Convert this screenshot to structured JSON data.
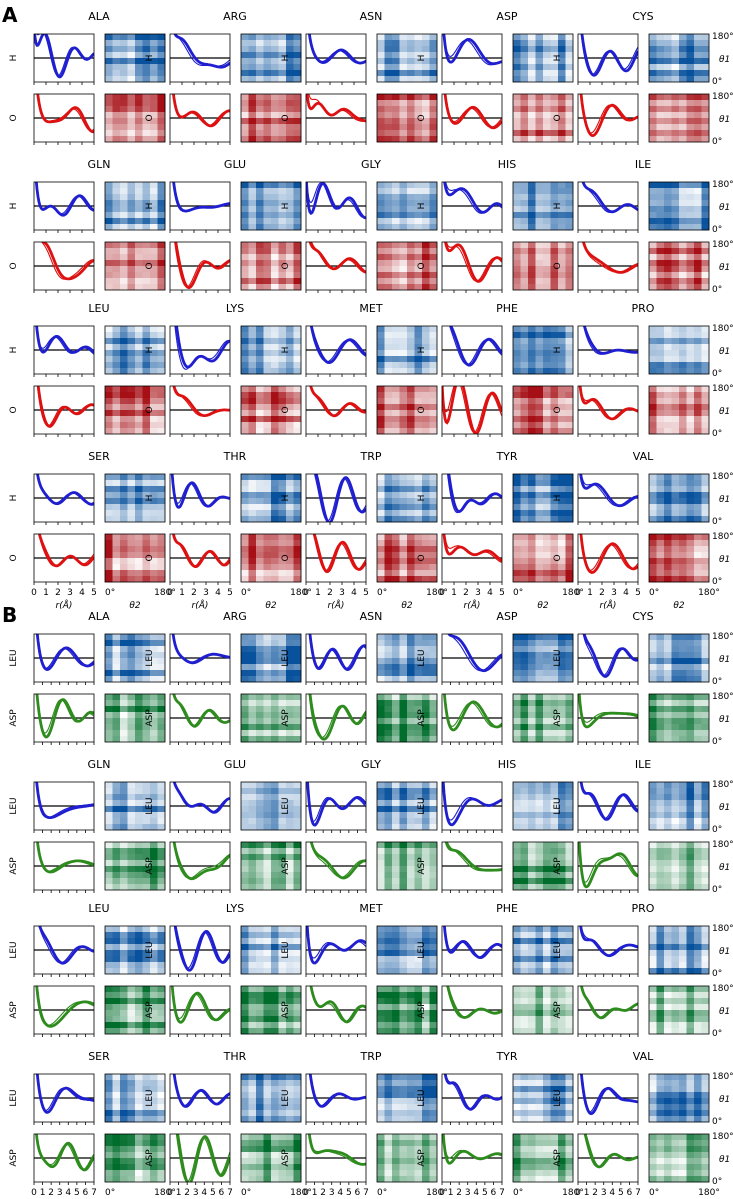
{
  "figure": {
    "panels": [
      {
        "id": "A",
        "label": "A",
        "residues": [
          "ALA",
          "ARG",
          "ASN",
          "ASP",
          "CYS",
          "GLN",
          "GLU",
          "GLY",
          "HIS",
          "ILE",
          "LEU",
          "LYS",
          "MET",
          "PHE",
          "PRO",
          "SER",
          "THR",
          "TRP",
          "TYR",
          "VAL"
        ],
        "rows": [
          {
            "label": "H",
            "palette": "blue"
          },
          {
            "label": "O",
            "palette": "red"
          }
        ],
        "r_ticks": [
          "0",
          "1",
          "2",
          "3",
          "4",
          "5"
        ],
        "r_max": 5
      },
      {
        "id": "B",
        "label": "B",
        "residues": [
          "ALA",
          "ARG",
          "ASN",
          "ASP",
          "CYS",
          "GLN",
          "GLU",
          "GLY",
          "HIS",
          "ILE",
          "LEU",
          "LYS",
          "MET",
          "PHE",
          "PRO",
          "SER",
          "THR",
          "TRP",
          "TYR",
          "VAL"
        ],
        "rows": [
          {
            "label": "LEU",
            "palette": "blue"
          },
          {
            "label": "ASP",
            "palette": "green"
          }
        ],
        "r_ticks": [
          "0",
          "1",
          "2",
          "3",
          "4",
          "5",
          "6",
          "7"
        ],
        "r_max": 7
      }
    ],
    "axis_text": {
      "r_label": "r(Å)",
      "theta2_label": "θ2",
      "theta1_label": "θ1",
      "theta_min": "0°",
      "theta_max": "180°"
    },
    "colors": {
      "blue": "#1f1fd0",
      "red": "#dd1111",
      "green": "#2e8b1e",
      "heat_blue": "#08519c",
      "heat_red": "#a50f15",
      "heat_green": "#006d2c",
      "zero_line": "#000000"
    }
  },
  "chart_data": {
    "type": "line",
    "description_kind": "small-multiples: radial distribution curves g(r) with thick/thin lines plus theta1-theta2 angular heatmaps per amino-acid residue",
    "panels": [
      "A",
      "B"
    ],
    "x_axis": {
      "label": "r(Å)",
      "ranges": {
        "A": [
          0,
          5
        ],
        "B": [
          0,
          7
        ]
      }
    },
    "heatmap_axes": {
      "x": "θ2",
      "y": "θ1",
      "range_deg": [
        0,
        180
      ]
    },
    "series_rows": {
      "A": [
        "H",
        "O"
      ],
      "B": [
        "LEU",
        "ASP"
      ]
    },
    "residues": [
      "ALA",
      "ARG",
      "ASN",
      "ASP",
      "CYS",
      "GLN",
      "GLU",
      "GLY",
      "HIS",
      "ILE",
      "LEU",
      "LYS",
      "MET",
      "PHE",
      "PRO",
      "SER",
      "THR",
      "TRP",
      "TYR",
      "VAL"
    ]
  }
}
